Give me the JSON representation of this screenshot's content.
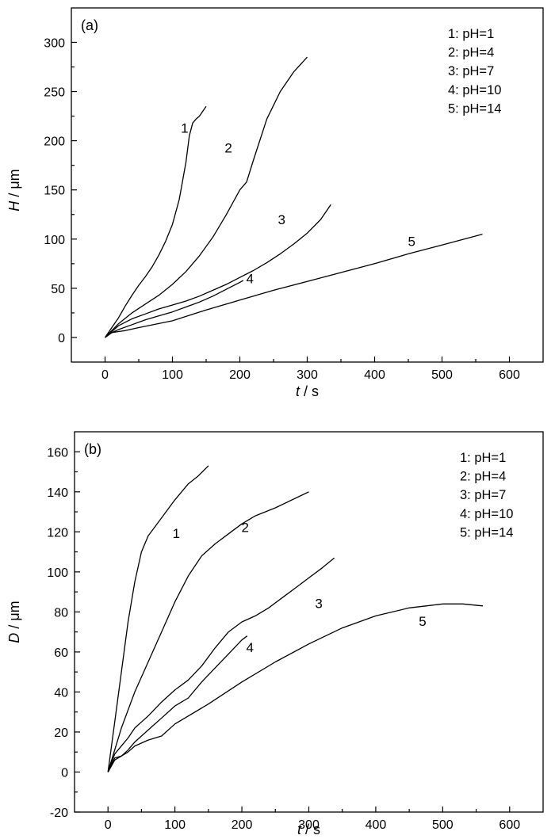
{
  "chart_data": [
    {
      "type": "line",
      "panel_label": "(a)",
      "xlabel_var": "t",
      "xlabel_unit": " / s",
      "ylabel_var": "H",
      "ylabel_unit": " / μm",
      "xlim": [
        -50,
        650
      ],
      "ylim": [
        -25,
        335
      ],
      "xticks": [
        0,
        100,
        200,
        300,
        400,
        500,
        600
      ],
      "yticks": [
        0,
        50,
        100,
        150,
        200,
        250,
        300
      ],
      "legend_position": "top-right",
      "legend": [
        "1: pH=1",
        "2: pH=4",
        "3: pH=7",
        "4: pH=10",
        "5: pH=14"
      ],
      "series": [
        {
          "label": "1",
          "label_at": [
            118,
            208
          ],
          "x": [
            0,
            10,
            20,
            30,
            40,
            50,
            60,
            70,
            80,
            90,
            100,
            110,
            120,
            125,
            130,
            135,
            140,
            145,
            150
          ],
          "y": [
            0,
            10,
            20,
            32,
            43,
            53,
            62,
            72,
            84,
            98,
            115,
            140,
            178,
            205,
            218,
            222,
            225,
            230,
            235
          ]
        },
        {
          "label": "2",
          "label_at": [
            183,
            188
          ],
          "x": [
            0,
            20,
            40,
            60,
            80,
            100,
            120,
            140,
            160,
            180,
            200,
            210,
            220,
            240,
            260,
            280,
            300
          ],
          "y": [
            0,
            14,
            25,
            34,
            43,
            54,
            67,
            83,
            102,
            125,
            150,
            158,
            180,
            222,
            250,
            270,
            285
          ]
        },
        {
          "label": "3",
          "label_at": [
            262,
            115
          ],
          "x": [
            0,
            10,
            20,
            40,
            60,
            80,
            100,
            120,
            140,
            160,
            180,
            200,
            220,
            240,
            260,
            280,
            300,
            320,
            335
          ],
          "y": [
            0,
            6,
            12,
            19,
            24,
            29,
            33,
            37,
            42,
            48,
            54,
            61,
            68,
            76,
            85,
            95,
            106,
            120,
            135
          ]
        },
        {
          "label": "4",
          "label_at": [
            215,
            55
          ],
          "x": [
            0,
            10,
            20,
            40,
            60,
            80,
            100,
            120,
            140,
            160,
            180,
            200,
            205
          ],
          "y": [
            0,
            5,
            8,
            13,
            18,
            22,
            26,
            31,
            36,
            42,
            49,
            56,
            58
          ]
        },
        {
          "label": "5",
          "label_at": [
            455,
            93
          ],
          "x": [
            0,
            10,
            20,
            30,
            50,
            100,
            150,
            200,
            250,
            300,
            350,
            400,
            450,
            500,
            560
          ],
          "y": [
            0,
            5,
            6,
            7,
            10,
            17,
            28,
            38,
            48,
            57,
            66,
            75,
            85,
            94,
            105
          ]
        }
      ]
    },
    {
      "type": "line",
      "panel_label": "(b)",
      "xlabel_var": "t",
      "xlabel_unit": " / s",
      "ylabel_var": "D",
      "ylabel_unit": " / μm",
      "xlim": [
        -50,
        650
      ],
      "ylim": [
        -20,
        170
      ],
      "xticks": [
        0,
        100,
        200,
        300,
        400,
        500,
        600
      ],
      "yticks": [
        -20,
        0,
        20,
        40,
        60,
        80,
        100,
        120,
        140,
        160
      ],
      "legend_position": "top-right",
      "legend": [
        "1: pH=1",
        "2: pH=4",
        "3: pH=7",
        "4: pH=10",
        "5: pH=14"
      ],
      "series": [
        {
          "label": "1",
          "label_at": [
            102,
            117
          ],
          "x": [
            0,
            10,
            20,
            30,
            40,
            50,
            60,
            80,
            100,
            120,
            135,
            150
          ],
          "y": [
            0,
            25,
            50,
            75,
            95,
            110,
            118,
            127,
            136,
            144,
            148,
            153
          ]
        },
        {
          "label": "2",
          "label_at": [
            205,
            120
          ],
          "x": [
            0,
            20,
            40,
            60,
            80,
            100,
            120,
            140,
            160,
            180,
            200,
            220,
            250,
            300
          ],
          "y": [
            0,
            22,
            40,
            55,
            70,
            85,
            98,
            108,
            114,
            119,
            124,
            128,
            132,
            140
          ]
        },
        {
          "label": "3",
          "label_at": [
            315,
            82
          ],
          "x": [
            0,
            10,
            20,
            30,
            40,
            60,
            80,
            100,
            120,
            140,
            160,
            180,
            200,
            220,
            240,
            260,
            280,
            300,
            320,
            338
          ],
          "y": [
            0,
            9,
            13,
            17,
            22,
            28,
            35,
            41,
            46,
            53,
            62,
            70,
            75,
            78,
            82,
            87,
            92,
            97,
            102,
            107
          ]
        },
        {
          "label": "4",
          "label_at": [
            212,
            60
          ],
          "x": [
            0,
            10,
            20,
            30,
            40,
            60,
            80,
            100,
            120,
            140,
            160,
            180,
            200,
            208
          ],
          "y": [
            0,
            6,
            8,
            11,
            15,
            21,
            27,
            33,
            37,
            45,
            52,
            59,
            66,
            68
          ]
        },
        {
          "label": "5",
          "label_at": [
            470,
            73
          ],
          "x": [
            0,
            10,
            20,
            30,
            40,
            60,
            80,
            100,
            150,
            200,
            250,
            300,
            350,
            400,
            450,
            500,
            530,
            560
          ],
          "y": [
            0,
            7,
            8,
            10,
            13,
            16,
            18,
            24,
            34,
            45,
            55,
            64,
            72,
            78,
            82,
            84,
            84,
            83
          ]
        }
      ]
    }
  ]
}
